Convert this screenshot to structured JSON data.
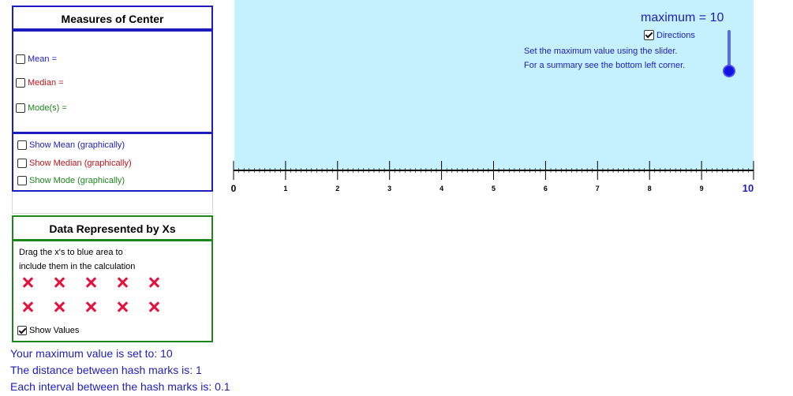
{
  "measures": {
    "title": "Measures of Center",
    "mean_label": "Mean =",
    "median_label": "Median =",
    "mode_label": "Mode(s) ="
  },
  "graphic_options": {
    "show_mean": "Show Mean (graphically)",
    "show_median": "Show Median (graphically)",
    "show_mode": "Show Mode (graphically)"
  },
  "data_panel": {
    "title": "Data Represented by Xs",
    "instruction_line1": "Drag the x's to blue area to",
    "instruction_line2": "include them in the calculation",
    "x_count": 10,
    "show_values_label": "Show Values",
    "show_values_checked": true
  },
  "info": {
    "line1": "Your maximum value is set to: 10",
    "line2": "The distance between hash marks is: 1",
    "line3": "Each interval between the hash marks is: 0.1"
  },
  "graph": {
    "maximum_label": "maximum = 10",
    "maximum_value": 10,
    "directions_label": "Directions",
    "directions_checked": true,
    "direction_line1": "Set the maximum value using the slider.",
    "direction_line2": "For a summary see the bottom left corner.",
    "slider_level": 1.0
  },
  "number_line": {
    "min": 0,
    "max": 10,
    "ticks": [
      "0",
      "1",
      "2",
      "3",
      "4",
      "5",
      "6",
      "7",
      "8",
      "9",
      "10"
    ]
  },
  "colors": {
    "blue": "#1d1dbd",
    "red": "#c0151b",
    "green": "#1d861d",
    "area": "#c5f0fd",
    "x_mark": "#e8103a"
  }
}
